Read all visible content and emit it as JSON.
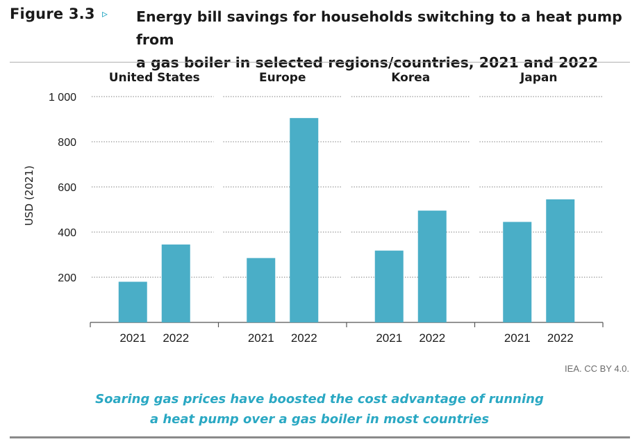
{
  "figure": {
    "label": "Figure 3.3",
    "arrow": "▹",
    "title_line1": "Energy bill savings for households switching to a heat pump from",
    "title_line2": "a gas boiler in selected regions/countries, 2021 and 2022"
  },
  "chart_data": {
    "type": "bar",
    "ylabel": "USD (2021)",
    "ylim": [
      0,
      1000
    ],
    "yticks": [
      200,
      400,
      600,
      800,
      1000
    ],
    "ytick_labels": [
      "200",
      "400",
      "600",
      "800",
      "1 000"
    ],
    "grid": "dotted horizontal",
    "bar_color": "#4aaec7",
    "panels": [
      {
        "title": "United States",
        "categories": [
          "2021",
          "2022"
        ],
        "values": [
          180,
          345
        ]
      },
      {
        "title": "Europe",
        "categories": [
          "2021",
          "2022"
        ],
        "values": [
          285,
          905
        ]
      },
      {
        "title": "Korea",
        "categories": [
          "2021",
          "2022"
        ],
        "values": [
          318,
          495
        ]
      },
      {
        "title": "Japan",
        "categories": [
          "2021",
          "2022"
        ],
        "values": [
          445,
          545
        ]
      }
    ]
  },
  "credit": "IEA. CC BY 4.0.",
  "takeaway": {
    "line1": "Soaring gas prices have boosted the cost advantage of running",
    "line2": "a heat pump over a gas boiler in most countries"
  }
}
